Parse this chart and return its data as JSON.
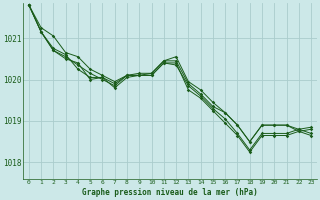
{
  "title": "Graphe pression niveau de la mer (hPa)",
  "bg_color": "#cce8e8",
  "grid_color": "#aacccc",
  "line_color": "#1a5c1a",
  "x_ticks": [
    0,
    1,
    2,
    3,
    4,
    5,
    6,
    7,
    8,
    9,
    10,
    11,
    12,
    13,
    14,
    15,
    16,
    17,
    18,
    19,
    20,
    21,
    22,
    23
  ],
  "x_labels": [
    "0",
    "1",
    "2",
    "3",
    "4",
    "5",
    "6",
    "7",
    "8",
    "9",
    "10",
    "11",
    "12",
    "13",
    "14",
    "15",
    "16",
    "17",
    "18",
    "19",
    "20",
    "21",
    "22",
    "23"
  ],
  "ylim": [
    1017.6,
    1021.85
  ],
  "yticks": [
    1018,
    1019,
    1020,
    1021
  ],
  "series": [
    [
      1021.8,
      1021.25,
      1021.05,
      1020.65,
      1020.55,
      1020.25,
      1020.1,
      1019.95,
      1020.1,
      1020.15,
      1020.15,
      1020.45,
      1020.45,
      1019.9,
      1019.65,
      1019.35,
      1019.2,
      1018.9,
      1018.5,
      1018.9,
      1018.9,
      1018.9,
      1018.75,
      1018.8
    ],
    [
      1021.8,
      1021.15,
      1020.7,
      1020.55,
      1020.35,
      1020.15,
      1020.0,
      1019.85,
      1020.1,
      1020.1,
      1020.1,
      1020.4,
      1020.4,
      1019.75,
      1019.55,
      1019.25,
      1018.95,
      1018.65,
      1018.25,
      1018.65,
      1018.65,
      1018.65,
      1018.75,
      1018.65
    ],
    [
      1021.8,
      1021.15,
      1020.75,
      1020.6,
      1020.25,
      1020.05,
      1020.05,
      1019.9,
      1020.1,
      1020.1,
      1020.1,
      1020.4,
      1020.35,
      1019.85,
      1019.6,
      1019.3,
      1019.05,
      1018.7,
      1018.3,
      1018.7,
      1018.7,
      1018.7,
      1018.8,
      1018.7
    ],
    [
      1021.8,
      1021.15,
      1020.7,
      1020.5,
      1020.4,
      1020.0,
      1020.05,
      1019.8,
      1020.05,
      1020.1,
      1020.15,
      1020.45,
      1020.55,
      1019.95,
      1019.75,
      1019.45,
      1019.2,
      1018.9,
      1018.5,
      1018.9,
      1018.9,
      1018.9,
      1018.8,
      1018.85
    ]
  ]
}
